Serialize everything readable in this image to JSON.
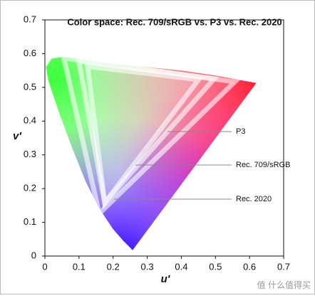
{
  "chart_data": {
    "type": "chromaticity",
    "title": "Color space: Rec. 709/sRGB vs. P3 vs. Rec. 2020",
    "x_label": "u′",
    "y_label": "v′",
    "xlim": [
      0,
      0.7
    ],
    "ylim": [
      0,
      0.7
    ],
    "xticks": [
      0,
      0.1,
      0.2,
      0.3,
      0.4,
      0.5,
      0.6,
      0.7
    ],
    "yticks": [
      0,
      0.1,
      0.2,
      0.3,
      0.4,
      0.5,
      0.6,
      0.7
    ],
    "spectral_locus": {
      "x": [
        0.257,
        0.25,
        0.23,
        0.2,
        0.16,
        0.12,
        0.08,
        0.04,
        0.01,
        0.003,
        0.02,
        0.05,
        0.1,
        0.2,
        0.3,
        0.4,
        0.5,
        0.62
      ],
      "y": [
        0.017,
        0.025,
        0.045,
        0.08,
        0.14,
        0.22,
        0.32,
        0.43,
        0.52,
        0.56,
        0.585,
        0.59,
        0.585,
        0.57,
        0.56,
        0.55,
        0.535,
        0.513
      ]
    },
    "series": [
      {
        "name": "Rec. 2020",
        "x": [
          0.5566,
          0.0556,
          0.1593
        ],
        "y": [
          0.5165,
          0.5868,
          0.1258
        ]
      },
      {
        "name": "P3",
        "x": [
          0.4966,
          0.0995,
          0.1754
        ],
        "y": [
          0.5261,
          0.5777,
          0.1579
        ]
      },
      {
        "name": "Rec. 709/sRGB",
        "x": [
          0.4507,
          0.125,
          0.1754
        ],
        "y": [
          0.5229,
          0.5625,
          0.1579
        ]
      }
    ],
    "watermark": "值 什么值得买"
  }
}
